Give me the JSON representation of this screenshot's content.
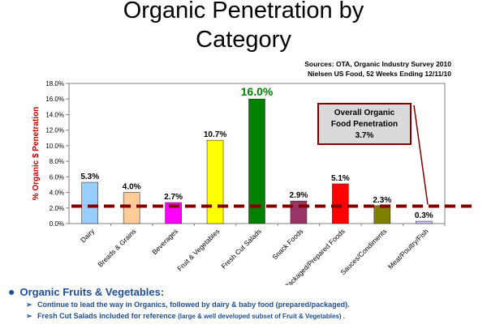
{
  "chart_data": {
    "type": "bar",
    "title_line1": "Organic Penetration by",
    "title_line2": "Category",
    "sources_line1": "Sources: OTA, Organic Industry Survey 2010",
    "sources_line2": "Nielsen US Food, 52 Weeks Ending 12/11/10",
    "ylabel": "% Organic $ Penetration",
    "ylim": [
      0,
      18
    ],
    "yticks": [
      "0.0%",
      "2.0%",
      "4.0%",
      "6.0%",
      "8.0%",
      "10.0%",
      "12.0%",
      "14.0%",
      "16.0%",
      "18.0%"
    ],
    "categories": [
      "Dairy",
      "Breads & Grains",
      "Beverages",
      "Fruit & Vegetables",
      "Fresh Cut Salads",
      "Snack Foods",
      "Packaged/Prepared Foods",
      "Sauces/Condiments",
      "Meat/Poultry/Fish"
    ],
    "values": [
      5.3,
      4.0,
      2.7,
      10.7,
      16.0,
      2.9,
      5.1,
      2.3,
      0.3
    ],
    "value_labels": [
      "5.3%",
      "4.0%",
      "2.7%",
      "10.7%",
      "16.0%",
      "2.9%",
      "5.1%",
      "2.3%",
      "0.3%"
    ],
    "colors": [
      "#99ccff",
      "#ffcc99",
      "#ff00ff",
      "#ffff00",
      "#008000",
      "#993366",
      "#ff0000",
      "#808000",
      "#ccccff"
    ],
    "reference_line": {
      "value": 3.7,
      "color": "#800000"
    },
    "annotation": {
      "line1": "Overall Organic",
      "line2": "Food Penetration",
      "line3": "3.7%"
    },
    "grid": false,
    "legend": "none"
  },
  "notes": {
    "main": "Organic Fruits & Vegetables:",
    "sub1_main": "Continue to lead the way in Organics, followed by dairy & baby food",
    "sub1_small": "(prepared/packaged).",
    "sub2_main": "Fresh Cut Salads included for reference",
    "sub2_small": "(large & well developed subset of Fruit & Vegetables) ."
  }
}
